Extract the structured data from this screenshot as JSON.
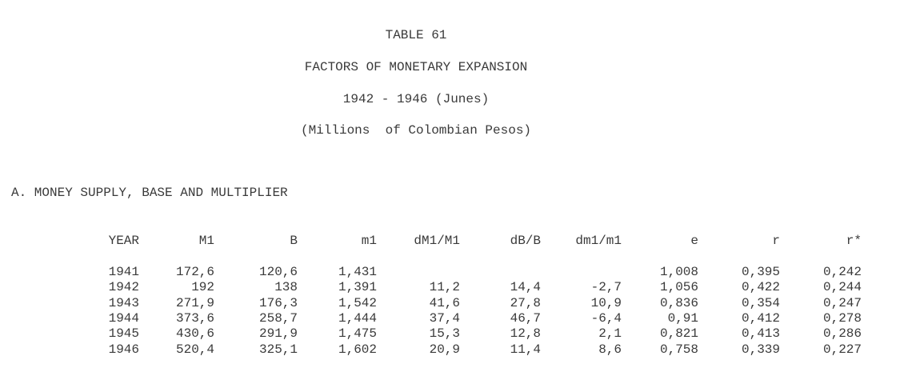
{
  "document": {
    "table_number": "TABLE 61",
    "title": "FACTORS OF MONETARY EXPANSION",
    "period": "1942 - 1946 (Junes)",
    "units": "(Millions  of Colombian Pesos)",
    "section_heading": "A. MONEY SUPPLY, BASE AND MULTIPLIER"
  },
  "table": {
    "columns": [
      "YEAR",
      "M1",
      "B",
      "m1",
      "dM1/M1",
      "dB/B",
      "dm1/m1",
      "e",
      "r",
      "r*"
    ],
    "rows": [
      [
        "1941",
        "172,6",
        "120,6",
        "1,431",
        "",
        "",
        "",
        "1,008",
        "0,395",
        "0,242"
      ],
      [
        "1942",
        "192",
        "138",
        "1,391",
        "11,2",
        "14,4",
        "-2,7",
        "1,056",
        "0,422",
        "0,244"
      ],
      [
        "1943",
        "271,9",
        "176,3",
        "1,542",
        "41,6",
        "27,8",
        "10,9",
        "0,836",
        "0,354",
        "0,247"
      ],
      [
        "1944",
        "373,6",
        "258,7",
        "1,444",
        "37,4",
        "46,7",
        "-6,4",
        "0,91",
        "0,412",
        "0,278"
      ],
      [
        "1945",
        "430,6",
        "291,9",
        "1,475",
        "15,3",
        "12,8",
        "2,1",
        "0,821",
        "0,413",
        "0,286"
      ],
      [
        "1946",
        "520,4",
        "325,1",
        "1,602",
        "20,9",
        "11,4",
        "8,6",
        "0,758",
        "0,339",
        "0,227"
      ]
    ]
  },
  "colors": {
    "text": "#3a3a3a",
    "background": "#ffffff"
  }
}
